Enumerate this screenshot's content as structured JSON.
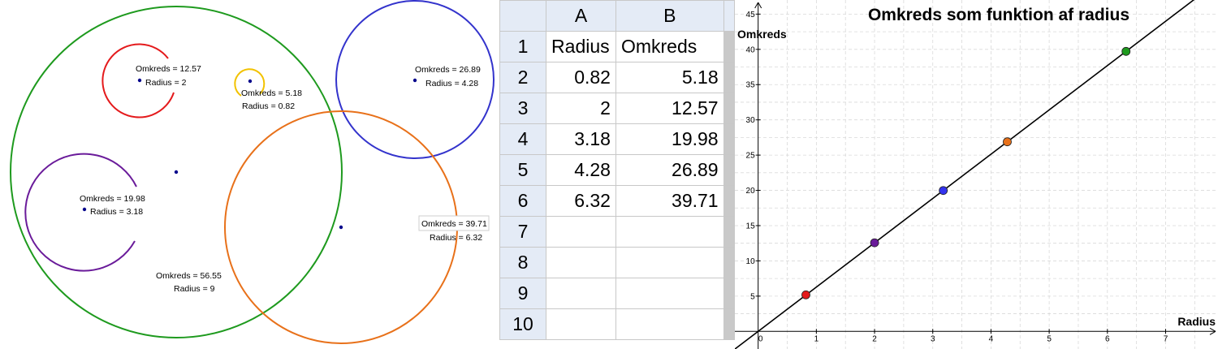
{
  "geometry": {
    "circles": [
      {
        "omkreds_label": "Omkreds = 12.57",
        "radius_label": "Radius = 2",
        "color": "#e41a1c"
      },
      {
        "omkreds_label": "Omkreds = 5.18",
        "radius_label": "Radius = 0.82",
        "color": "#f2c200"
      },
      {
        "omkreds_label": "Omkreds = 26.89",
        "radius_label": "Radius = 4.28",
        "color": "#3333cc"
      },
      {
        "omkreds_label": "Omkreds = 19.98",
        "radius_label": "Radius = 3.18",
        "color": "#6a1b9a"
      },
      {
        "omkreds_label": "Omkreds = 39.71",
        "radius_label": "Radius = 6.32",
        "color": "#e8711a"
      },
      {
        "omkreds_label": "Omkreds = 56.55",
        "radius_label": "Radius = 9",
        "color": "#1e9a1e"
      }
    ]
  },
  "spreadsheet": {
    "columns": [
      "A",
      "B"
    ],
    "rows": [
      {
        "n": "1",
        "a": "Radius",
        "b": "Omkreds"
      },
      {
        "n": "2",
        "a": "0.82",
        "b": "5.18"
      },
      {
        "n": "3",
        "a": "2",
        "b": "12.57"
      },
      {
        "n": "4",
        "a": "3.18",
        "b": "19.98"
      },
      {
        "n": "5",
        "a": "4.28",
        "b": "26.89"
      },
      {
        "n": "6",
        "a": "6.32",
        "b": "39.71"
      },
      {
        "n": "7",
        "a": "",
        "b": ""
      },
      {
        "n": "8",
        "a": "",
        "b": ""
      },
      {
        "n": "9",
        "a": "",
        "b": ""
      },
      {
        "n": "10",
        "a": "",
        "b": ""
      }
    ]
  },
  "chart_data": {
    "type": "scatter",
    "title": "Omkreds som funktion af radius",
    "xlabel": "Radius",
    "ylabel": "Omkreds",
    "xlim": [
      -0.4,
      7.9
    ],
    "ylim": [
      -2.5,
      47
    ],
    "xticks": [
      0,
      1,
      2,
      3,
      4,
      5,
      6,
      7
    ],
    "yticks": [
      5,
      10,
      15,
      20,
      25,
      30,
      35,
      40,
      45
    ],
    "grid": true,
    "points": [
      {
        "x": 0.82,
        "y": 5.18,
        "color": "#e41a1c"
      },
      {
        "x": 2,
        "y": 12.57,
        "color": "#6a1b9a"
      },
      {
        "x": 3.18,
        "y": 19.98,
        "color": "#3333ee"
      },
      {
        "x": 4.28,
        "y": 26.89,
        "color": "#e8711a"
      },
      {
        "x": 6.32,
        "y": 39.71,
        "color": "#1e9a1e"
      }
    ],
    "line": {
      "slope": 6.2832,
      "intercept": 0,
      "color": "#000000"
    }
  }
}
